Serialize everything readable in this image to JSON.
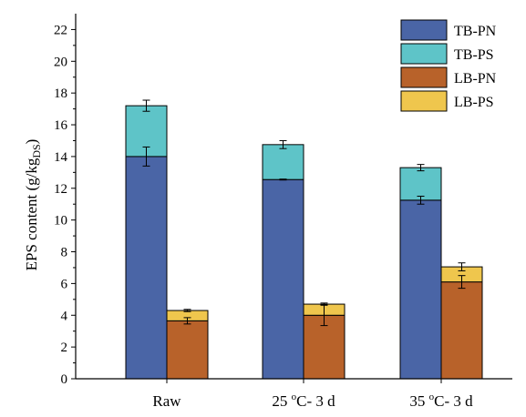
{
  "chart_data": {
    "type": "bar",
    "stacked": true,
    "ylabel_main": "EPS content (g/kg",
    "ylabel_sub": "DS",
    "ylabel_close": ")",
    "ylim": [
      0,
      23
    ],
    "yticks": [
      0,
      2,
      4,
      6,
      8,
      10,
      12,
      14,
      16,
      18,
      20,
      22
    ],
    "categories": [
      {
        "base": "Raw",
        "sup": "",
        "rest": ""
      },
      {
        "base": "25 ",
        "sup": "o",
        "rest": "C- 3 d"
      },
      {
        "base": "35 ",
        "sup": "o",
        "rest": "C- 3 d"
      }
    ],
    "series": [
      {
        "name": "TB-PN",
        "group": "TB",
        "color": "#4a65a6",
        "values": [
          14.0,
          12.55,
          11.25
        ],
        "errors": [
          0.6,
          0.03,
          0.25
        ]
      },
      {
        "name": "TB-PS",
        "group": "TB",
        "color": "#5ec4c8",
        "values": [
          3.2,
          2.2,
          2.05
        ],
        "errors": [
          0.35,
          0.25,
          0.2
        ]
      },
      {
        "name": "LB-PN",
        "group": "LB",
        "color": "#b8622a",
        "values": [
          3.65,
          4.0,
          6.1
        ],
        "errors": [
          0.2,
          0.65,
          0.4
        ]
      },
      {
        "name": "LB-PS",
        "group": "LB",
        "color": "#efc64d",
        "values": [
          0.65,
          0.7,
          0.95
        ],
        "errors": [
          0.07,
          0.07,
          0.25
        ]
      }
    ],
    "legend_position": "top-right",
    "grid": false
  }
}
